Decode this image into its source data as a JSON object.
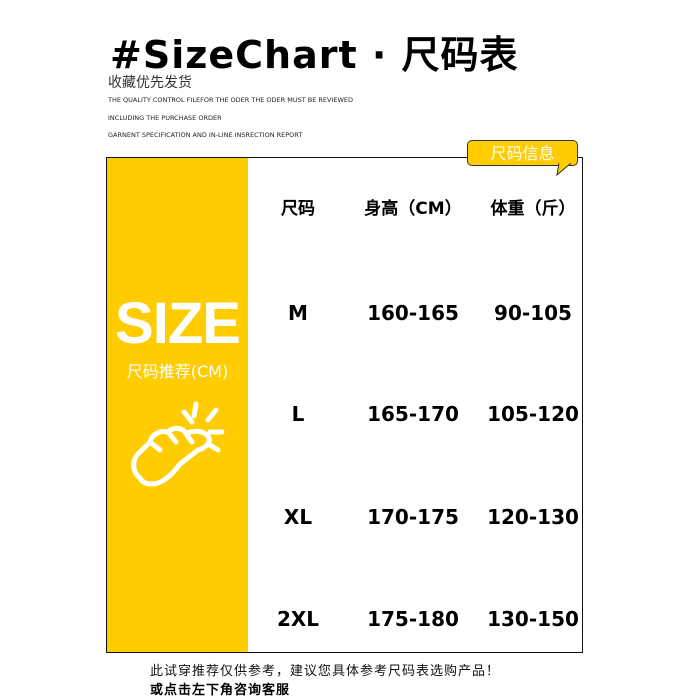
{
  "header": {
    "title": "#SizeChart · 尺码表",
    "subtitle": "收藏优先发货",
    "lines": [
      "THE QUALITY CONTROL FILEFOR THE ODER THE ODER MUST BE REVIEWED",
      "INCLUDING THE PURCHASE ORDER",
      "GARNENT SPECIFICATION AND IN-LINE INSRECTION REPORT"
    ]
  },
  "sidebar": {
    "size_word": "SIZE",
    "recommend": "尺码推荐(CM)",
    "icon": "tapping-hand-icon"
  },
  "bubble": "尺码信息",
  "colors": {
    "accent": "#FFCC00"
  },
  "table": {
    "headers": [
      "尺码",
      "身高（CM）",
      "体重（斤）"
    ],
    "rows": [
      [
        "M",
        "160-165",
        "90-105"
      ],
      [
        "L",
        "165-170",
        "105-120"
      ],
      [
        "XL",
        "170-175",
        "120-130"
      ],
      [
        "2XL",
        "175-180",
        "130-150"
      ]
    ]
  },
  "footer": {
    "line1": "此试穿推荐仅供参考，建议您具体参考尺码表选购产品！",
    "line2": "或点击左下角咨询客服"
  }
}
